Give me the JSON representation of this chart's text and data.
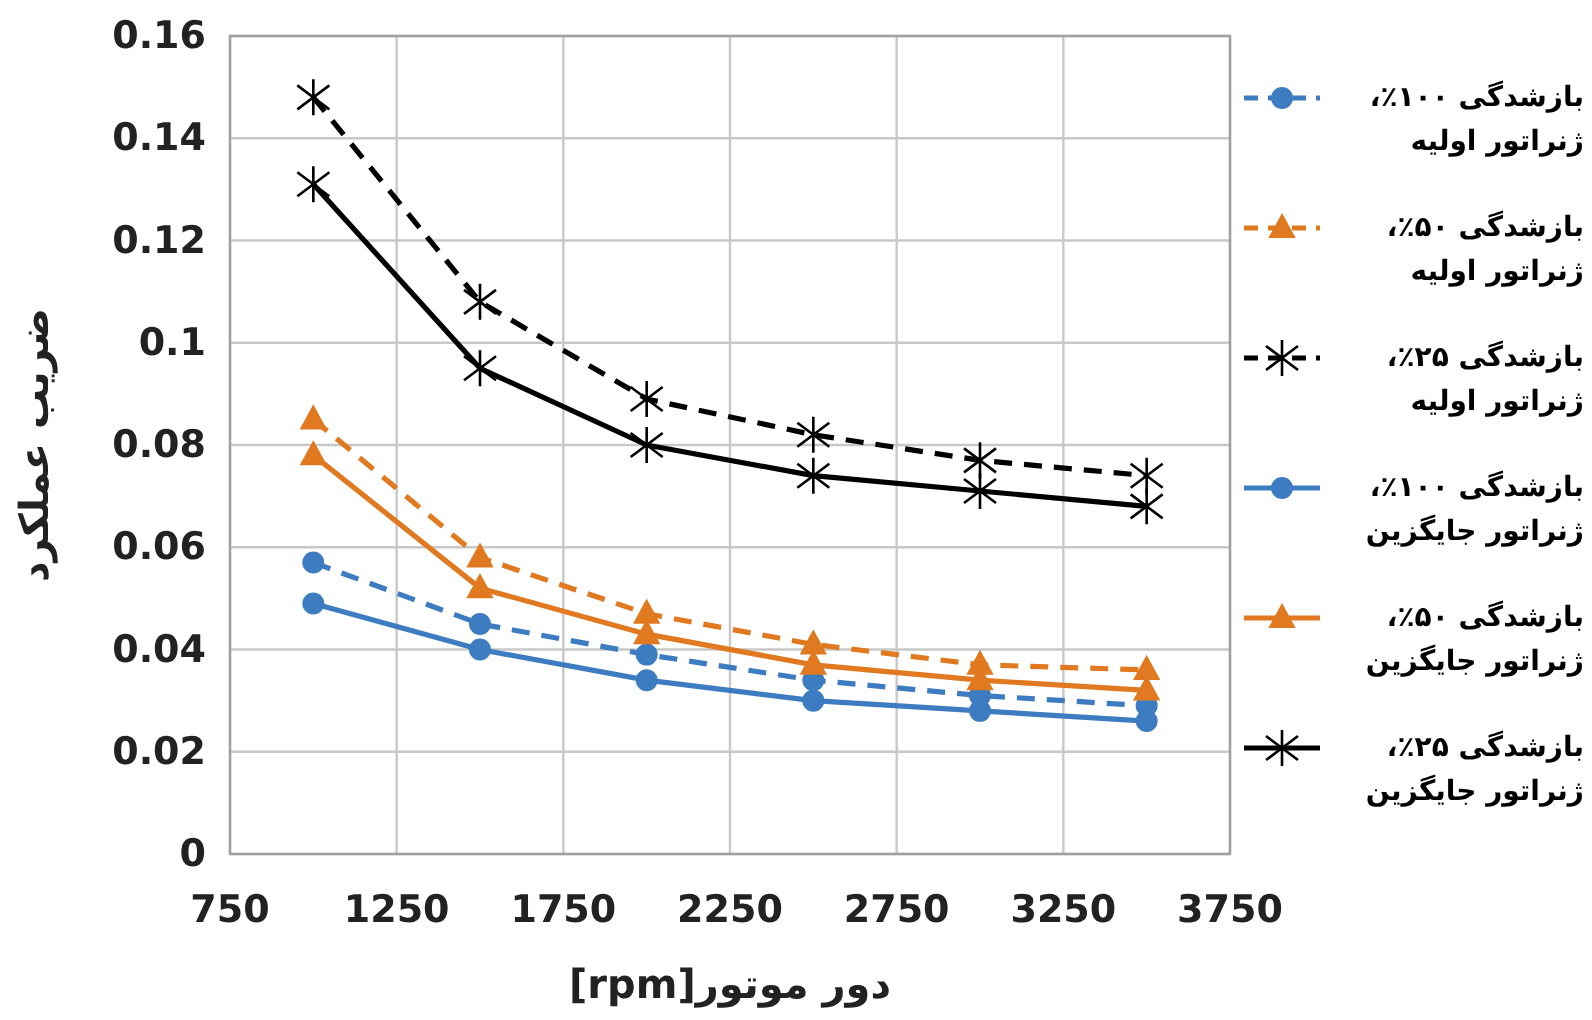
{
  "chart_data": {
    "type": "line",
    "xlabel": "دور موتور[rpm]",
    "ylabel": "ضریب عملکرد",
    "x": [
      1000,
      1500,
      2000,
      2500,
      3000,
      3500
    ],
    "xlim": [
      750,
      3750
    ],
    "xticks": [
      750,
      1250,
      1750,
      2250,
      2750,
      3250,
      3750
    ],
    "ylim": [
      0,
      0.16
    ],
    "yticks": [
      0,
      0.02,
      0.04,
      0.06,
      0.08,
      0.1,
      0.12,
      0.14,
      0.16
    ],
    "grid": true,
    "legend": "right",
    "series": [
      {
        "name": "بازشدگی ۱۰۰٪، ژنراتور اولیه",
        "color": "#3d7cc0",
        "marker": "circle",
        "line_style": "dashed",
        "values": [
          0.057,
          0.045,
          0.039,
          0.034,
          0.031,
          0.029
        ]
      },
      {
        "name": "بازشدگی ۵۰٪، ژنراتور اولیه",
        "color": "#e0791f",
        "marker": "triangle",
        "line_style": "dashed",
        "values": [
          0.085,
          0.058,
          0.047,
          0.041,
          0.037,
          0.036
        ]
      },
      {
        "name": "بازشدگی ۲۵٪، ژنراتور اولیه",
        "color": "#000000",
        "marker": "cross",
        "line_style": "dashed",
        "values": [
          0.148,
          0.108,
          0.089,
          0.082,
          0.077,
          0.074
        ]
      },
      {
        "name": "بازشدگی ۱۰۰٪، ژنراتور جایگزین",
        "color": "#3d7cc0",
        "marker": "circle",
        "line_style": "solid",
        "values": [
          0.049,
          0.04,
          0.034,
          0.03,
          0.028,
          0.026
        ]
      },
      {
        "name": "بازشدگی ۵۰٪، ژنراتور جایگزین",
        "color": "#e0791f",
        "marker": "triangle",
        "line_style": "solid",
        "values": [
          0.078,
          0.052,
          0.043,
          0.037,
          0.034,
          0.032
        ]
      },
      {
        "name": "بازشدگی ۲۵٪، ژنراتور جایگزین",
        "color": "#000000",
        "marker": "cross",
        "line_style": "solid",
        "values": [
          0.131,
          0.095,
          0.08,
          0.074,
          0.071,
          0.068
        ]
      }
    ]
  }
}
